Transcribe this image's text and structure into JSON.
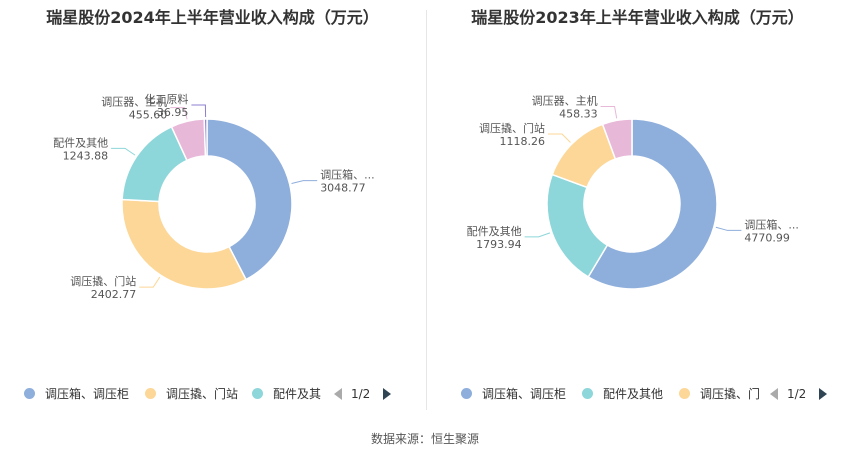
{
  "charts": [
    {
      "title": "瑞星股份2024年上半年营业收入构成（万元）",
      "legend": {
        "items": [
          {
            "label": "调压箱、调压柜",
            "color": "#8eaedc"
          },
          {
            "label": "调压撬、门站",
            "color": "#fcd797"
          },
          {
            "label": "配件及其",
            "color": "#8dd6da"
          }
        ],
        "page": "1/2"
      },
      "slice_labels": [
        {
          "name": "调压箱、...",
          "value": "3048.77"
        },
        {
          "name": "调压撬、门站",
          "value": "2402.77"
        },
        {
          "name": "配件及其他",
          "value": "1243.88"
        },
        {
          "name": "调压器、主机",
          "value": "455.60"
        },
        {
          "name": "化工原料",
          "value": "36.95"
        }
      ]
    },
    {
      "title": "瑞星股份2023年上半年营业收入构成（万元）",
      "legend": {
        "items": [
          {
            "label": "调压箱、调压柜",
            "color": "#8eaedc"
          },
          {
            "label": "配件及其他",
            "color": "#8dd6da"
          },
          {
            "label": "调压撬、门",
            "color": "#fcd797"
          }
        ],
        "page": "1/2"
      },
      "slice_labels": [
        {
          "name": "调压箱、...",
          "value": "4770.99"
        },
        {
          "name": "配件及其他",
          "value": "1793.94"
        },
        {
          "name": "调压撬、门站",
          "value": "1118.26"
        },
        {
          "name": "调压器、主机",
          "value": "458.33"
        }
      ]
    }
  ],
  "source": "数据来源：恒生聚源",
  "chart_data": [
    {
      "type": "pie",
      "title": "瑞星股份2024年上半年营业收入构成（万元）",
      "categories": [
        "调压箱、调压柜",
        "调压撬、门站",
        "配件及其他",
        "调压器、主机",
        "化工原料"
      ],
      "values": [
        3048.77,
        2402.77,
        1243.88,
        455.6,
        36.95
      ],
      "colors": [
        "#8eaedc",
        "#fcd797",
        "#8dd6da",
        "#e8b8d8",
        "#8c7fd0"
      ],
      "donut": true,
      "legend_position": "bottom"
    },
    {
      "type": "pie",
      "title": "瑞星股份2023年上半年营业收入构成（万元）",
      "categories": [
        "调压箱、调压柜",
        "配件及其他",
        "调压撬、门站",
        "调压器、主机"
      ],
      "values": [
        4770.99,
        1793.94,
        1118.26,
        458.33
      ],
      "colors": [
        "#8eaedc",
        "#8dd6da",
        "#fcd797",
        "#e8b8d8"
      ],
      "donut": true,
      "legend_position": "bottom"
    }
  ]
}
